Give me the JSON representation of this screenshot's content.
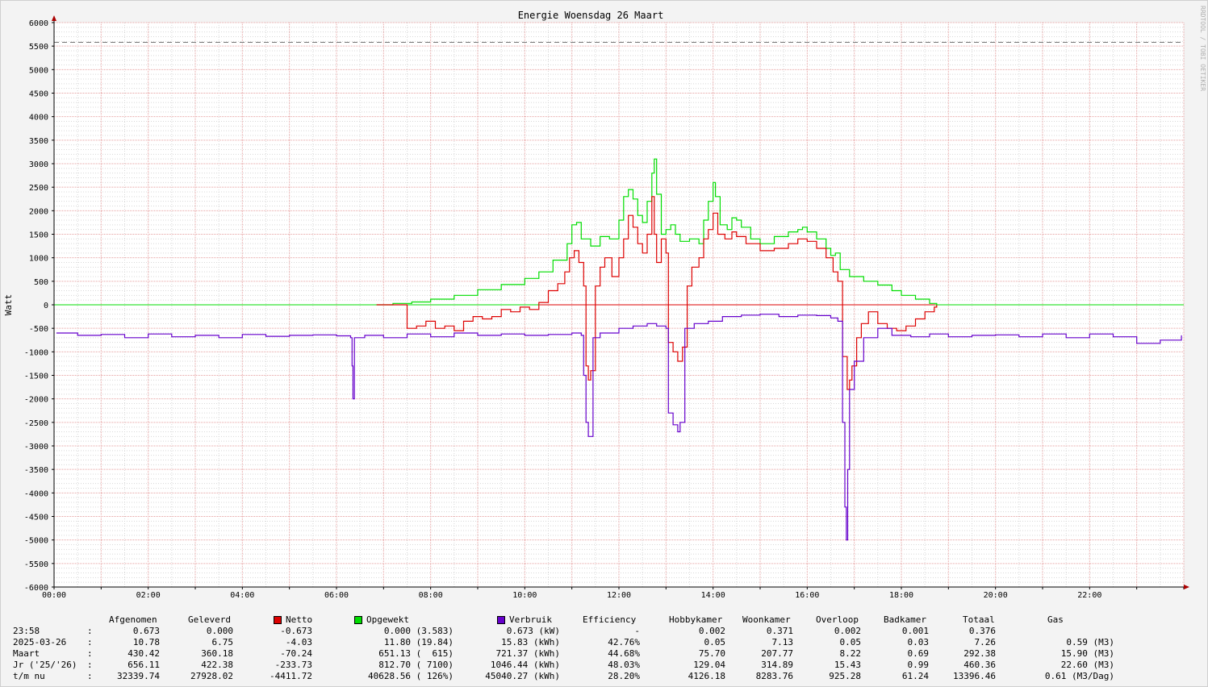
{
  "chart_data": {
    "type": "line",
    "title": "Energie Woensdag  26 Maart",
    "ylabel": "Watt",
    "watermark": "RRDTOOL / TOBI OETIKER",
    "ylim": [
      -6000,
      6000
    ],
    "yticks": [
      6000,
      5500,
      5000,
      4500,
      4000,
      3500,
      3000,
      2500,
      2000,
      1500,
      1000,
      500,
      0,
      -500,
      -1000,
      -1500,
      -2000,
      -2500,
      -3000,
      -3500,
      -4000,
      -4500,
      -5000,
      -5500,
      -6000
    ],
    "ytick_labels": [
      "6000",
      "5500",
      "5000",
      "4500",
      "4000",
      "3500",
      "3000",
      "2500",
      "2000",
      "1500",
      "1000",
      "500",
      "0",
      "-500",
      "-1000",
      "-1500",
      "-2000",
      "-2500",
      "-3000",
      "-3500",
      "-4000",
      "-4500",
      "-5000",
      "-5500",
      "-6000"
    ],
    "xlim_hours": [
      0,
      24
    ],
    "xtick_hours": [
      0,
      2,
      4,
      6,
      8,
      10,
      12,
      14,
      16,
      18,
      20,
      22
    ],
    "xtick_labels": [
      "00:00",
      "02:00",
      "04:00",
      "06:00",
      "08:00",
      "10:00",
      "12:00",
      "14:00",
      "16:00",
      "18:00",
      "20:00",
      "22:00"
    ],
    "hrule": 5580,
    "grid": true,
    "colors": {
      "netto": "#dd0000",
      "opgewekt": "#00dd00",
      "verbruik": "#6600cc",
      "hrule": "#777777",
      "grid_major": "#e6a0a0",
      "grid_minor": "#d8d8d8"
    },
    "series": [
      {
        "name": "Opgewekt",
        "key": "opgewekt",
        "points": [
          [
            6.85,
            0
          ],
          [
            7.2,
            30
          ],
          [
            7.6,
            60
          ],
          [
            8.0,
            120
          ],
          [
            8.5,
            200
          ],
          [
            9.0,
            320
          ],
          [
            9.5,
            430
          ],
          [
            10.0,
            560
          ],
          [
            10.3,
            700
          ],
          [
            10.6,
            950
          ],
          [
            10.9,
            1300
          ],
          [
            11.0,
            1700
          ],
          [
            11.1,
            1750
          ],
          [
            11.2,
            1400
          ],
          [
            11.4,
            1250
          ],
          [
            11.6,
            1450
          ],
          [
            11.8,
            1400
          ],
          [
            12.0,
            1800
          ],
          [
            12.1,
            2300
          ],
          [
            12.2,
            2450
          ],
          [
            12.3,
            2250
          ],
          [
            12.4,
            1900
          ],
          [
            12.5,
            1750
          ],
          [
            12.6,
            2200
          ],
          [
            12.7,
            2800
          ],
          [
            12.75,
            3100
          ],
          [
            12.8,
            2350
          ],
          [
            12.9,
            1500
          ],
          [
            13.0,
            1600
          ],
          [
            13.1,
            1700
          ],
          [
            13.2,
            1500
          ],
          [
            13.3,
            1350
          ],
          [
            13.5,
            1400
          ],
          [
            13.7,
            1300
          ],
          [
            13.8,
            1800
          ],
          [
            13.9,
            2200
          ],
          [
            14.0,
            2600
          ],
          [
            14.05,
            2300
          ],
          [
            14.15,
            1700
          ],
          [
            14.3,
            1600
          ],
          [
            14.4,
            1850
          ],
          [
            14.5,
            1800
          ],
          [
            14.6,
            1650
          ],
          [
            14.8,
            1400
          ],
          [
            15.0,
            1300
          ],
          [
            15.3,
            1450
          ],
          [
            15.6,
            1550
          ],
          [
            15.8,
            1600
          ],
          [
            15.9,
            1650
          ],
          [
            16.0,
            1550
          ],
          [
            16.2,
            1400
          ],
          [
            16.4,
            1200
          ],
          [
            16.5,
            1050
          ],
          [
            16.6,
            1100
          ],
          [
            16.7,
            750
          ],
          [
            16.9,
            600
          ],
          [
            17.2,
            500
          ],
          [
            17.5,
            420
          ],
          [
            17.8,
            300
          ],
          [
            18.0,
            200
          ],
          [
            18.3,
            120
          ],
          [
            18.6,
            30
          ],
          [
            18.75,
            0
          ]
        ]
      },
      {
        "name": "Netto",
        "key": "netto",
        "points": [
          [
            6.85,
            0
          ],
          [
            7.3,
            0
          ],
          [
            7.5,
            -500
          ],
          [
            7.7,
            -450
          ],
          [
            7.9,
            -350
          ],
          [
            8.1,
            -500
          ],
          [
            8.3,
            -450
          ],
          [
            8.5,
            -550
          ],
          [
            8.7,
            -350
          ],
          [
            8.9,
            -250
          ],
          [
            9.1,
            -300
          ],
          [
            9.3,
            -250
          ],
          [
            9.5,
            -100
          ],
          [
            9.7,
            -150
          ],
          [
            9.9,
            -50
          ],
          [
            10.1,
            -100
          ],
          [
            10.3,
            50
          ],
          [
            10.5,
            300
          ],
          [
            10.7,
            450
          ],
          [
            10.85,
            700
          ],
          [
            10.95,
            1000
          ],
          [
            11.05,
            1150
          ],
          [
            11.15,
            900
          ],
          [
            11.25,
            400
          ],
          [
            11.3,
            -1300
          ],
          [
            11.35,
            -1600
          ],
          [
            11.4,
            -1400
          ],
          [
            11.5,
            400
          ],
          [
            11.6,
            800
          ],
          [
            11.7,
            1000
          ],
          [
            11.85,
            600
          ],
          [
            12.0,
            1000
          ],
          [
            12.1,
            1400
          ],
          [
            12.2,
            1900
          ],
          [
            12.3,
            1650
          ],
          [
            12.4,
            1300
          ],
          [
            12.5,
            1100
          ],
          [
            12.6,
            1500
          ],
          [
            12.7,
            2300
          ],
          [
            12.75,
            1500
          ],
          [
            12.8,
            900
          ],
          [
            12.9,
            1400
          ],
          [
            13.0,
            1100
          ],
          [
            13.05,
            -800
          ],
          [
            13.15,
            -1000
          ],
          [
            13.25,
            -1200
          ],
          [
            13.35,
            -900
          ],
          [
            13.45,
            400
          ],
          [
            13.55,
            800
          ],
          [
            13.7,
            1000
          ],
          [
            13.8,
            1400
          ],
          [
            13.9,
            1600
          ],
          [
            14.0,
            1950
          ],
          [
            14.1,
            1500
          ],
          [
            14.25,
            1400
          ],
          [
            14.4,
            1550
          ],
          [
            14.5,
            1450
          ],
          [
            14.7,
            1300
          ],
          [
            15.0,
            1150
          ],
          [
            15.3,
            1200
          ],
          [
            15.6,
            1300
          ],
          [
            15.8,
            1400
          ],
          [
            16.0,
            1350
          ],
          [
            16.2,
            1200
          ],
          [
            16.4,
            1000
          ],
          [
            16.55,
            700
          ],
          [
            16.65,
            500
          ],
          [
            16.75,
            -1100
          ],
          [
            16.85,
            -1800
          ],
          [
            16.9,
            -1600
          ],
          [
            16.95,
            -1300
          ],
          [
            17.05,
            -700
          ],
          [
            17.15,
            -400
          ],
          [
            17.3,
            -150
          ],
          [
            17.5,
            -400
          ],
          [
            17.7,
            -500
          ],
          [
            17.9,
            -550
          ],
          [
            18.1,
            -450
          ],
          [
            18.3,
            -300
          ],
          [
            18.5,
            -150
          ],
          [
            18.7,
            -50
          ],
          [
            18.75,
            0
          ]
        ]
      },
      {
        "name": "Verbruik",
        "key": "verbruik",
        "points": [
          [
            0.05,
            -600
          ],
          [
            0.5,
            -650
          ],
          [
            1.0,
            -630
          ],
          [
            1.5,
            -700
          ],
          [
            2.0,
            -620
          ],
          [
            2.5,
            -680
          ],
          [
            3.0,
            -650
          ],
          [
            3.5,
            -700
          ],
          [
            4.0,
            -630
          ],
          [
            4.5,
            -670
          ],
          [
            5.0,
            -650
          ],
          [
            5.5,
            -640
          ],
          [
            6.0,
            -660
          ],
          [
            6.3,
            -700
          ],
          [
            6.33,
            -1300
          ],
          [
            6.35,
            -2000
          ],
          [
            6.38,
            -700
          ],
          [
            6.6,
            -650
          ],
          [
            7.0,
            -700
          ],
          [
            7.5,
            -620
          ],
          [
            8.0,
            -680
          ],
          [
            8.5,
            -600
          ],
          [
            9.0,
            -650
          ],
          [
            9.5,
            -620
          ],
          [
            10.0,
            -650
          ],
          [
            10.5,
            -630
          ],
          [
            11.0,
            -600
          ],
          [
            11.2,
            -650
          ],
          [
            11.25,
            -1500
          ],
          [
            11.3,
            -2500
          ],
          [
            11.35,
            -2800
          ],
          [
            11.4,
            -2800
          ],
          [
            11.45,
            -700
          ],
          [
            11.6,
            -600
          ],
          [
            12.0,
            -500
          ],
          [
            12.3,
            -450
          ],
          [
            12.6,
            -400
          ],
          [
            12.8,
            -450
          ],
          [
            13.0,
            -500
          ],
          [
            13.05,
            -2300
          ],
          [
            13.15,
            -2550
          ],
          [
            13.25,
            -2700
          ],
          [
            13.3,
            -2500
          ],
          [
            13.4,
            -500
          ],
          [
            13.6,
            -400
          ],
          [
            13.9,
            -350
          ],
          [
            14.2,
            -250
          ],
          [
            14.6,
            -220
          ],
          [
            15.0,
            -200
          ],
          [
            15.4,
            -250
          ],
          [
            15.8,
            -220
          ],
          [
            16.2,
            -230
          ],
          [
            16.5,
            -280
          ],
          [
            16.65,
            -350
          ],
          [
            16.75,
            -2500
          ],
          [
            16.8,
            -4300
          ],
          [
            16.83,
            -5000
          ],
          [
            16.86,
            -3500
          ],
          [
            16.9,
            -1800
          ],
          [
            17.0,
            -1200
          ],
          [
            17.2,
            -700
          ],
          [
            17.5,
            -500
          ],
          [
            17.8,
            -650
          ],
          [
            18.2,
            -680
          ],
          [
            18.6,
            -620
          ],
          [
            19.0,
            -680
          ],
          [
            19.5,
            -650
          ],
          [
            20.0,
            -640
          ],
          [
            20.5,
            -680
          ],
          [
            21.0,
            -620
          ],
          [
            21.5,
            -700
          ],
          [
            22.0,
            -620
          ],
          [
            22.5,
            -680
          ],
          [
            23.0,
            -820
          ],
          [
            23.5,
            -750
          ],
          [
            23.95,
            -650
          ]
        ]
      }
    ]
  },
  "table": {
    "headers": [
      "Afgenomen",
      "Geleverd",
      "Netto",
      "Opgewekt",
      "Verbruik",
      "Efficiency",
      "Hobbykamer",
      "Woonkamer",
      "Overloop",
      "Badkamer",
      "Totaal",
      "Gas"
    ],
    "rows": [
      {
        "label": "23:58",
        "sep": ":",
        "cells": [
          "0.673",
          "0.000",
          "-0.673",
          "0.000 (3.583)",
          "0.673 (kW)",
          "-",
          "0.002",
          "0.371",
          "0.002",
          "0.001",
          "0.376",
          ""
        ]
      },
      {
        "label": "2025-03-26",
        "sep": ":",
        "cells": [
          "10.78",
          "6.75",
          "-4.03",
          "11.80 (19.84)",
          "15.83 (kWh)",
          "42.76%",
          "0.05",
          "7.13",
          "0.05",
          "0.03",
          "7.26",
          "0.59 (M3)"
        ]
      },
      {
        "label": "Maart",
        "sep": ":",
        "cells": [
          "430.42",
          "360.18",
          "-70.24",
          "651.13 (  615)",
          "721.37 (kWh)",
          "44.68%",
          "75.70",
          "207.77",
          "8.22",
          "0.69",
          "292.38",
          "15.90 (M3)"
        ]
      },
      {
        "label": "Jr ('25/'26)",
        "sep": ":",
        "cells": [
          "656.11",
          "422.38",
          "-233.73",
          "812.70 ( 7100)",
          "1046.44 (kWh)",
          "48.03%",
          "129.04",
          "314.89",
          "15.43",
          "0.99",
          "460.36",
          "22.60 (M3)"
        ]
      },
      {
        "label": "t/m nu",
        "sep": ":",
        "cells": [
          "32339.74",
          "27928.02",
          "-4411.72",
          "40628.56 ( 126%)",
          "45040.27 (kWh)",
          "28.20%",
          "4126.18",
          "8283.76",
          "925.28",
          "61.24",
          "13396.46",
          "0.61 (M3/Dag)"
        ]
      }
    ]
  }
}
